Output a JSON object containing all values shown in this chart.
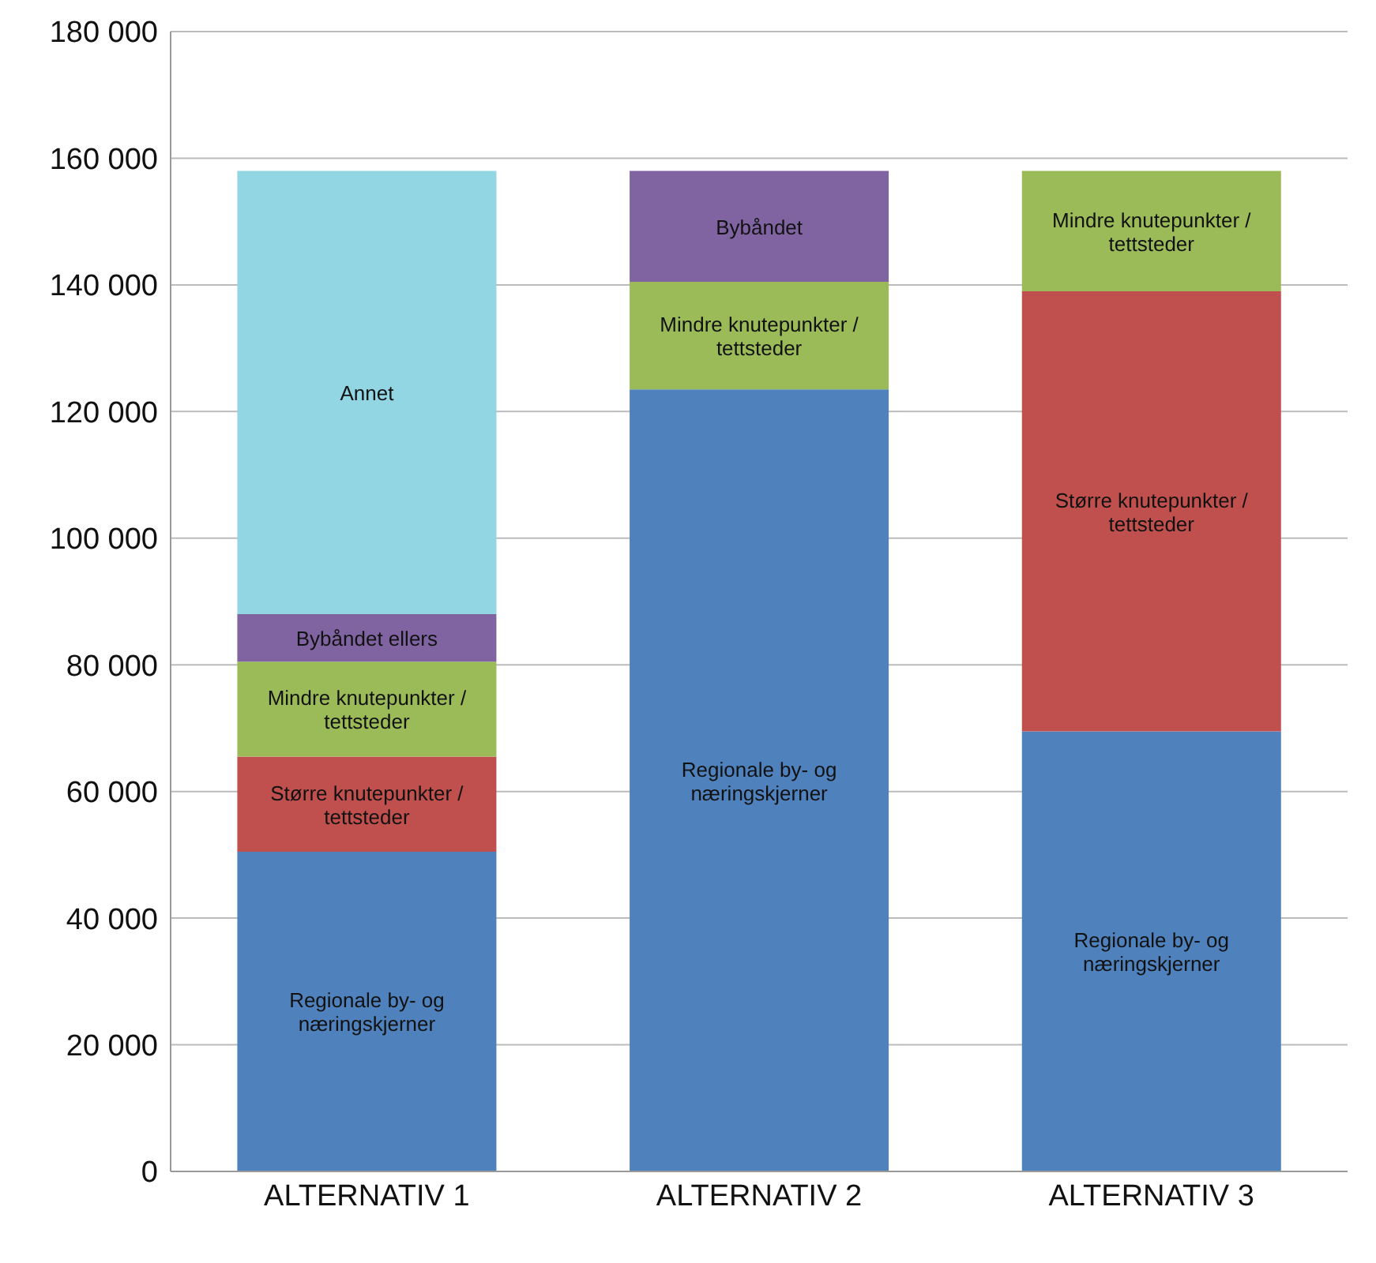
{
  "chart_data": {
    "type": "bar",
    "stacked": true,
    "categories": [
      "ALTERNATIV 1",
      "ALTERNATIV 2",
      "ALTERNATIV 3"
    ],
    "series": [
      {
        "name": "Regionale by- og næringskjerner",
        "color": "#4f81bd",
        "values": [
          50500,
          123500,
          69500
        ]
      },
      {
        "name": "Større knutepunkter / tettsteder",
        "color": "#c0504d",
        "values": [
          15000,
          null,
          69500
        ]
      },
      {
        "name": "Mindre knutepunkter / tettsteder",
        "color": "#9bbb59",
        "values": [
          15000,
          17000,
          19000
        ]
      },
      {
        "name": "Bybåndet ellers",
        "color": "#8064a2",
        "values": [
          7500,
          null,
          null
        ]
      },
      {
        "name": "Bybåndet",
        "color": "#8064a2",
        "values": [
          null,
          17500,
          null
        ]
      },
      {
        "name": "Annet",
        "color": "#92d5e3",
        "values": [
          70000,
          null,
          null
        ]
      }
    ],
    "ylim": [
      0,
      180000
    ],
    "yticks": [
      {
        "value": 0,
        "label": "0"
      },
      {
        "value": 20000,
        "label": "20 000"
      },
      {
        "value": 40000,
        "label": "40 000"
      },
      {
        "value": 60000,
        "label": "60 000"
      },
      {
        "value": 80000,
        "label": "80 000"
      },
      {
        "value": 100000,
        "label": "100 000"
      },
      {
        "value": 120000,
        "label": "120 000"
      },
      {
        "value": 140000,
        "label": "140 000"
      },
      {
        "value": 160000,
        "label": "160 000"
      },
      {
        "value": 180000,
        "label": "180 000"
      }
    ],
    "grid": "y",
    "legend": false
  }
}
